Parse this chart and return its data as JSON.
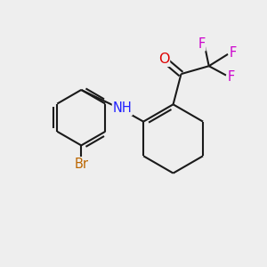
{
  "background_color": "#eeeeee",
  "bond_color": "#1a1a1a",
  "N_color": "#2020ff",
  "O_color": "#dd0000",
  "F_color": "#cc00cc",
  "Br_color": "#bb6600",
  "bond_width": 1.5,
  "figsize": [
    3.0,
    3.0
  ],
  "dpi": 100,
  "xlim": [
    0,
    10
  ],
  "ylim": [
    0,
    10
  ]
}
